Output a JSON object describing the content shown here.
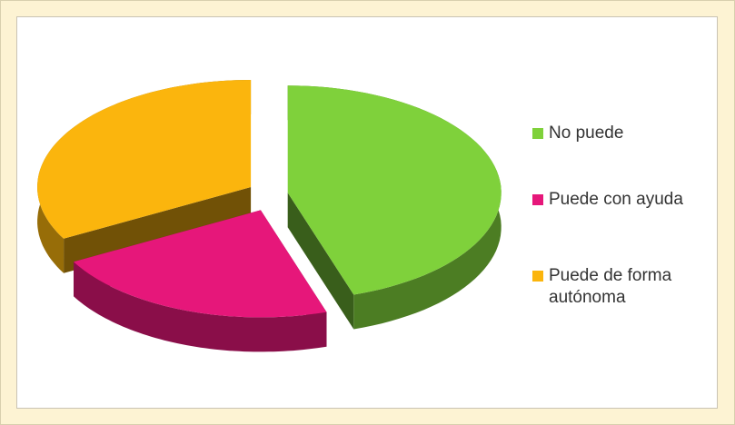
{
  "chart_data": {
    "type": "pie3d",
    "categories": [
      "No puede",
      "Puede con ayuda",
      "Puede de forma autónoma"
    ],
    "values": [
      45,
      22,
      33
    ],
    "colors": [
      "#7fd13b",
      "#e6177a",
      "#fbb50d"
    ],
    "legend": "right"
  }
}
